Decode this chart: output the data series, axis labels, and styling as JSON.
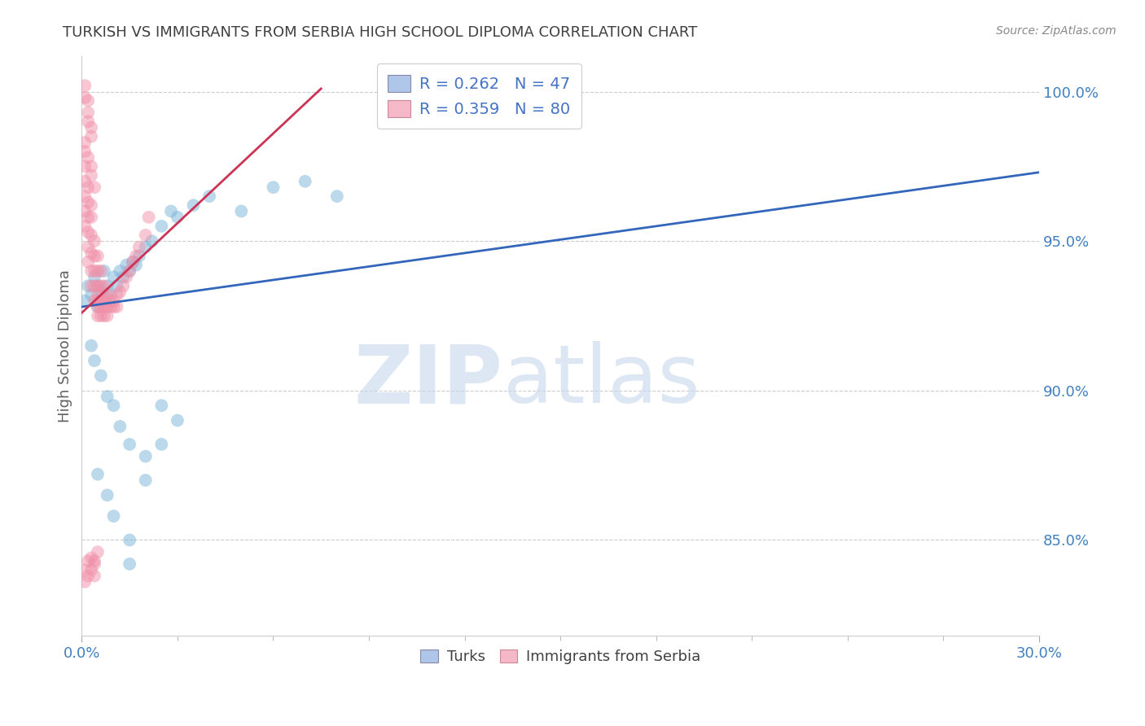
{
  "title": "TURKISH VS IMMIGRANTS FROM SERBIA HIGH SCHOOL DIPLOMA CORRELATION CHART",
  "source": "Source: ZipAtlas.com",
  "ylabel": "High School Diploma",
  "xlim": [
    0.0,
    0.3
  ],
  "ylim": [
    0.818,
    1.012
  ],
  "xticks": [
    0.0,
    0.3
  ],
  "xtick_labels": [
    "0.0%",
    "30.0%"
  ],
  "yticks": [
    0.85,
    0.9,
    0.95,
    1.0
  ],
  "ytick_labels": [
    "85.0%",
    "90.0%",
    "95.0%",
    "100.0%"
  ],
  "legend_line1": "R = 0.262   N = 47",
  "legend_line2": "R = 0.359   N = 80",
  "legend_color1": "#aec6e8",
  "legend_color2": "#f4b8c8",
  "watermark_zip": "ZIP",
  "watermark_atlas": "atlas",
  "blue_color": "#7ab4d8",
  "pink_color": "#f090a8",
  "blue_line_color": "#3366bb",
  "pink_line_color": "#cc3355",
  "background_color": "#ffffff",
  "grid_color": "#cccccc",
  "title_color": "#404040",
  "axis_label_color": "#606060",
  "tick_color": "#4080c0",
  "blue_line_x": [
    0.0,
    0.3
  ],
  "blue_line_y": [
    0.928,
    0.973
  ],
  "pink_line_x": [
    0.0,
    0.075
  ],
  "pink_line_y": [
    0.926,
    1.001
  ],
  "blue_x": [
    0.001,
    0.002,
    0.003,
    0.004,
    0.005,
    0.005,
    0.006,
    0.007,
    0.008,
    0.009,
    0.01,
    0.011,
    0.012,
    0.013,
    0.014,
    0.015,
    0.016,
    0.017,
    0.018,
    0.02,
    0.022,
    0.025,
    0.028,
    0.03,
    0.035,
    0.04,
    0.05,
    0.06,
    0.07,
    0.08,
    0.003,
    0.004,
    0.006,
    0.008,
    0.01,
    0.012,
    0.015,
    0.02,
    0.025,
    0.03,
    0.005,
    0.008,
    0.01,
    0.015,
    0.02,
    0.025,
    0.015
  ],
  "blue_y": [
    0.93,
    0.935,
    0.932,
    0.938,
    0.935,
    0.928,
    0.933,
    0.94,
    0.935,
    0.932,
    0.938,
    0.935,
    0.94,
    0.938,
    0.942,
    0.94,
    0.943,
    0.942,
    0.945,
    0.948,
    0.95,
    0.955,
    0.96,
    0.958,
    0.962,
    0.965,
    0.96,
    0.968,
    0.97,
    0.965,
    0.915,
    0.91,
    0.905,
    0.898,
    0.895,
    0.888,
    0.882,
    0.878,
    0.882,
    0.89,
    0.872,
    0.865,
    0.858,
    0.85,
    0.87,
    0.895,
    0.842
  ],
  "pink_x": [
    0.001,
    0.001,
    0.001,
    0.001,
    0.001,
    0.002,
    0.002,
    0.002,
    0.002,
    0.002,
    0.002,
    0.003,
    0.003,
    0.003,
    0.003,
    0.003,
    0.003,
    0.004,
    0.004,
    0.004,
    0.004,
    0.004,
    0.005,
    0.005,
    0.005,
    0.005,
    0.005,
    0.005,
    0.005,
    0.006,
    0.006,
    0.006,
    0.006,
    0.006,
    0.007,
    0.007,
    0.007,
    0.007,
    0.007,
    0.008,
    0.008,
    0.008,
    0.009,
    0.009,
    0.01,
    0.01,
    0.011,
    0.011,
    0.012,
    0.013,
    0.014,
    0.015,
    0.016,
    0.017,
    0.018,
    0.02,
    0.021,
    0.001,
    0.001,
    0.002,
    0.002,
    0.003,
    0.003,
    0.004,
    0.004,
    0.004,
    0.005,
    0.001,
    0.001,
    0.002,
    0.002,
    0.002,
    0.003,
    0.003,
    0.001,
    0.001,
    0.002,
    0.003,
    0.003,
    0.004
  ],
  "pink_y": [
    0.975,
    0.97,
    0.965,
    0.96,
    0.955,
    0.968,
    0.963,
    0.958,
    0.953,
    0.948,
    0.943,
    0.962,
    0.958,
    0.952,
    0.946,
    0.94,
    0.935,
    0.95,
    0.945,
    0.94,
    0.935,
    0.93,
    0.945,
    0.94,
    0.935,
    0.93,
    0.928,
    0.932,
    0.925,
    0.94,
    0.935,
    0.93,
    0.928,
    0.925,
    0.935,
    0.932,
    0.928,
    0.925,
    0.93,
    0.932,
    0.928,
    0.925,
    0.93,
    0.928,
    0.93,
    0.928,
    0.932,
    0.928,
    0.933,
    0.935,
    0.938,
    0.94,
    0.943,
    0.945,
    0.948,
    0.952,
    0.958,
    0.84,
    0.836,
    0.843,
    0.838,
    0.844,
    0.84,
    0.843,
    0.838,
    0.842,
    0.846,
    0.998,
    1.002,
    0.997,
    0.993,
    0.99,
    0.988,
    0.985,
    0.983,
    0.98,
    0.978,
    0.975,
    0.972,
    0.968
  ]
}
